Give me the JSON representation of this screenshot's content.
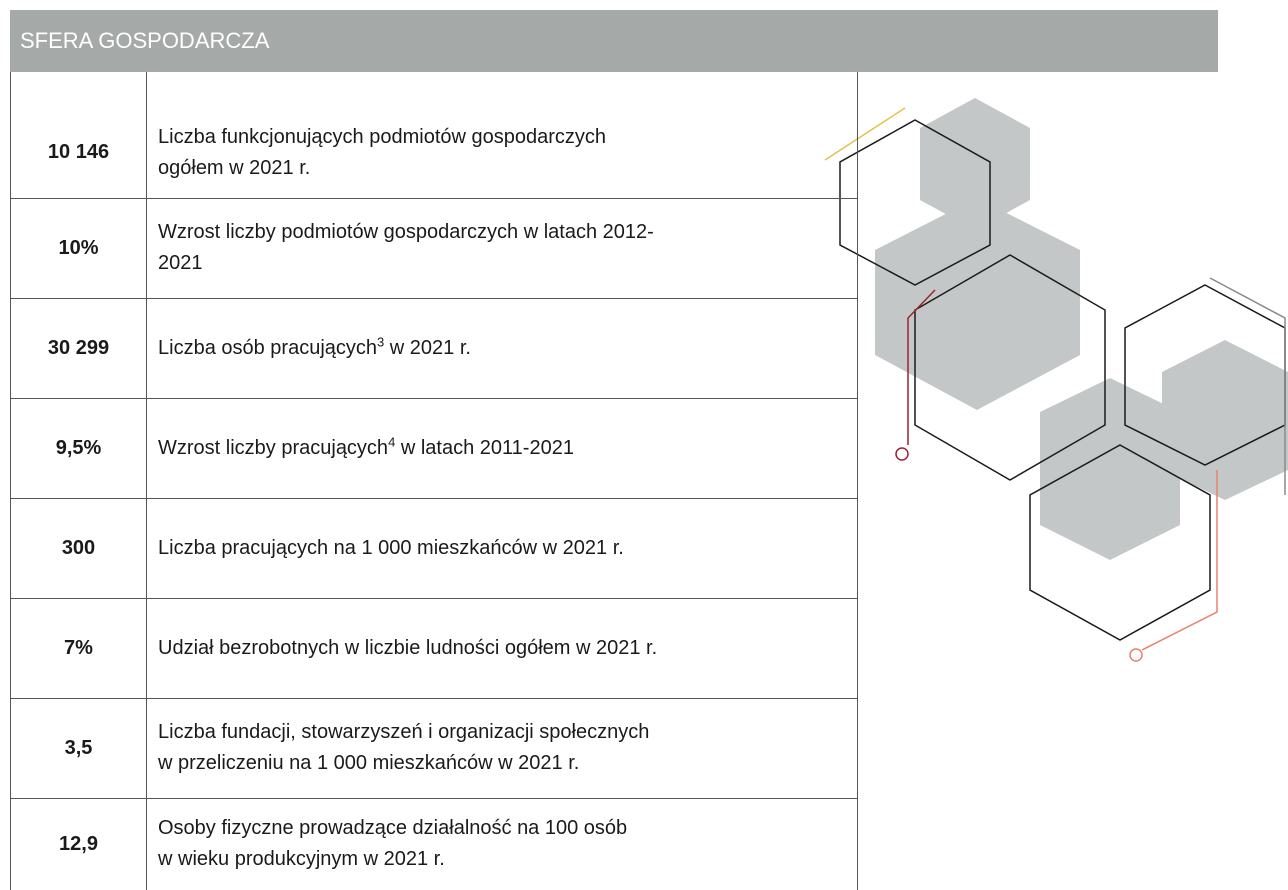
{
  "header": {
    "title": "SFERA GOSPODARCZA"
  },
  "table": {
    "rows": [
      {
        "value": "10 146",
        "lines": [
          "Liczba funkcjonujących podmiotów gospodarczych",
          "ogółem w 2021 r."
        ]
      },
      {
        "value": "10%",
        "lines": [
          "Wzrost liczby podmiotów gospodarczych w latach 2012-",
          "2021"
        ]
      },
      {
        "value": "30 299",
        "text": "Liczba osób pracujących",
        "footnote": "3",
        "text_after": " w 2021 r."
      },
      {
        "value": "9,5%",
        "text": "Wzrost liczby pracujących",
        "footnote": "4",
        "text_after": " w latach 2011-2021"
      },
      {
        "value": "300",
        "lines": [
          "Liczba pracujących na 1 000 mieszkańców w 2021 r."
        ]
      },
      {
        "value": "7%",
        "lines": [
          "Udział bezrobotnych w liczbie ludności ogółem w 2021 r."
        ]
      },
      {
        "value": "3,5",
        "lines": [
          "Liczba fundacji, stowarzyszeń i organizacji społecznych",
          "w przeliczeniu na 1 000 mieszkańców w 2021 r."
        ]
      },
      {
        "value": "12,9",
        "lines": [
          "Osoby fizyczne prowadzące działalność na 100 osób",
          "w wieku produkcyjnym w 2021 r."
        ]
      }
    ]
  }
}
